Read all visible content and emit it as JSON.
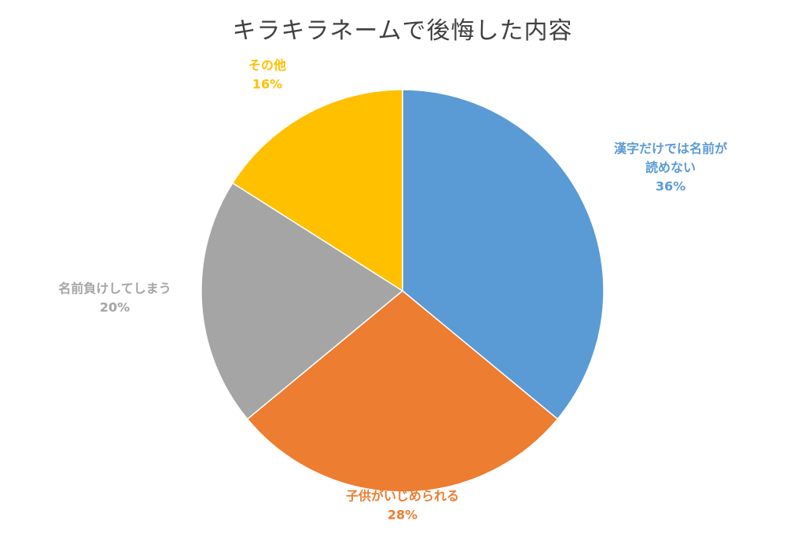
{
  "chart_data": {
    "type": "pie",
    "title": "キラキラネームで後悔した内容",
    "slices": [
      {
        "label_lines": [
          "漢字だけでは名前が",
          "読めない"
        ],
        "percent_label": "36%",
        "value": 36,
        "color": "#5B9BD5"
      },
      {
        "label_lines": [
          "子供がいじめられる"
        ],
        "percent_label": "28%",
        "value": 28,
        "color": "#ED7D31"
      },
      {
        "label_lines": [
          "名前負けしてしまう"
        ],
        "percent_label": "20%",
        "value": 20,
        "color": "#A5A5A5"
      },
      {
        "label_lines": [
          "その他"
        ],
        "percent_label": "16%",
        "value": 16,
        "color": "#FFC000"
      }
    ],
    "start_angle": "12 o'clock",
    "direction": "clockwise",
    "legend": "none"
  }
}
